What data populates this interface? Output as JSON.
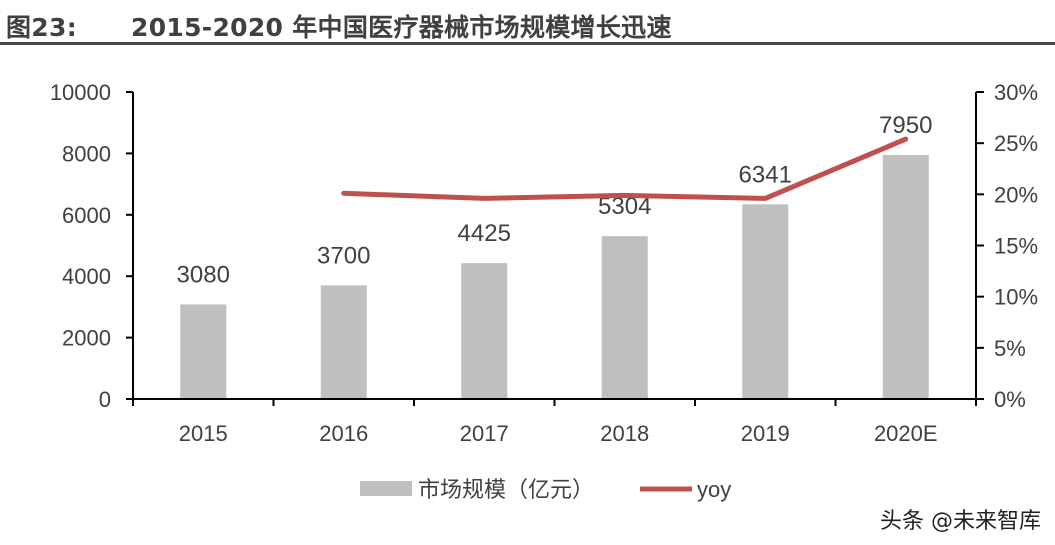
{
  "title": "图23:      2015-2020 年中国医疗器械市场规模增长迅速",
  "watermark": "头条 @未来智库",
  "chart_data": {
    "type": "bar+line",
    "categories": [
      "2015",
      "2016",
      "2017",
      "2018",
      "2019",
      "2020E"
    ],
    "series": [
      {
        "name": "市场规模（亿元）",
        "type": "bar",
        "axis": "left",
        "color": "#bfbfbf",
        "values": [
          3080,
          3700,
          4425,
          5304,
          6341,
          7950
        ],
        "data_labels": [
          "3080",
          "3700",
          "4425",
          "5304",
          "6341",
          "7950"
        ]
      },
      {
        "name": "yoy",
        "type": "line",
        "axis": "right",
        "color": "#c0504d",
        "values": [
          null,
          20.1,
          19.6,
          19.9,
          19.6,
          25.4
        ]
      }
    ],
    "left_axis": {
      "ylim": [
        0,
        10000
      ],
      "ticks": [
        0,
        2000,
        4000,
        6000,
        8000,
        10000
      ],
      "tick_labels": [
        "0",
        "2000",
        "4000",
        "6000",
        "8000",
        "10000"
      ]
    },
    "right_axis": {
      "ylim": [
        0,
        30
      ],
      "ticks": [
        0,
        5,
        10,
        15,
        20,
        25,
        30
      ],
      "tick_labels": [
        "0%",
        "5%",
        "10%",
        "15%",
        "20%",
        "25%",
        "30%"
      ]
    },
    "legend": {
      "placement": "bottom",
      "entries": [
        "市场规模（亿元）",
        "yoy"
      ]
    },
    "grid": false
  }
}
